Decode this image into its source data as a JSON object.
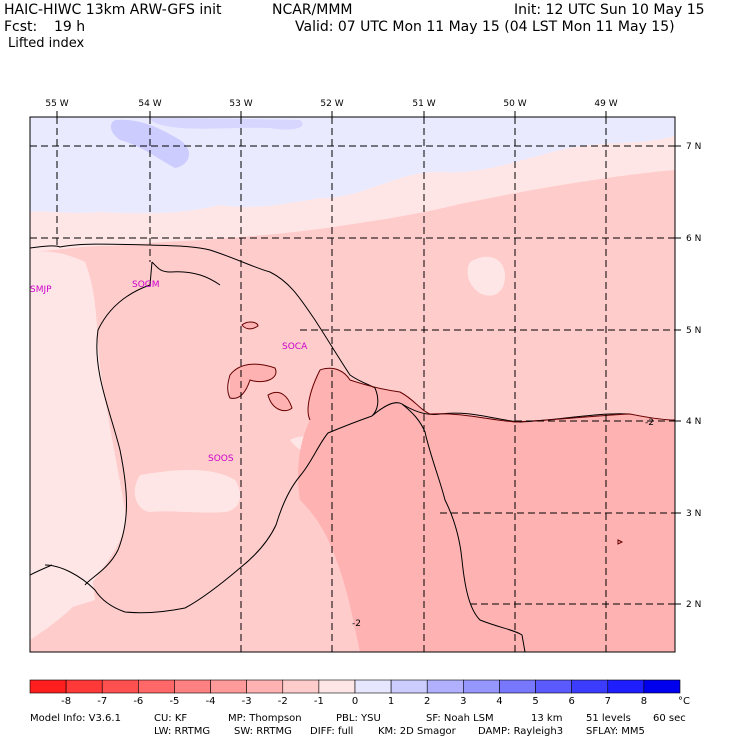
{
  "header": {
    "model": "HAIC-HIWC 13km ARW-GFS init",
    "org": "NCAR/MMM",
    "init": "Init: 12 UTC Sun 10 May 15",
    "fcst_label": "Fcst:",
    "fcst_value": "19 h",
    "valid": "Valid: 07 UTC Mon 11 May 15 (04 LST Mon 11 May 15)",
    "field": "Lifted index"
  },
  "map": {
    "lon_labels": [
      "55 W",
      "54 W",
      "53 W",
      "52 W",
      "51 W",
      "50 W",
      "49 W"
    ],
    "lat_labels": [
      "7 N",
      "6 N",
      "5 N",
      "4 N",
      "3 N",
      "2 N"
    ],
    "stations": [
      "SMJP",
      "SOGM",
      "SOCA",
      "SOOS"
    ],
    "contour_labels": [
      "-2",
      "-2"
    ]
  },
  "colorbar": {
    "labels": [
      "-8",
      "-7",
      "-6",
      "-5",
      "-4",
      "-3",
      "-2",
      "-1",
      "0",
      "1",
      "2",
      "3",
      "4",
      "5",
      "6",
      "7",
      "8"
    ],
    "unit": "°C",
    "colors": [
      "#ff1e1e",
      "#ff3838",
      "#ff5050",
      "#ff6868",
      "#ff8080",
      "#ff9a9a",
      "#ffb2b2",
      "#ffcccc",
      "#ffe6e6",
      "#e6e6ff",
      "#ccccff",
      "#b0b0ff",
      "#9696ff",
      "#7878ff",
      "#5a5aff",
      "#3c3cff",
      "#1e1eff",
      "#0000ee"
    ]
  },
  "footer": {
    "line1": [
      "Model Info: V3.6.1",
      "CU: KF",
      "MP: Thompson",
      "PBL: YSU",
      "SF: Noah LSM",
      "13 km",
      "51 levels",
      "60 sec"
    ],
    "line2": [
      "LW: RRTMG",
      "SW: RRTMG",
      "DIFF: full",
      "KM: 2D Smagor",
      "DAMP: Rayleigh3",
      "SFLAY: MM5"
    ]
  }
}
